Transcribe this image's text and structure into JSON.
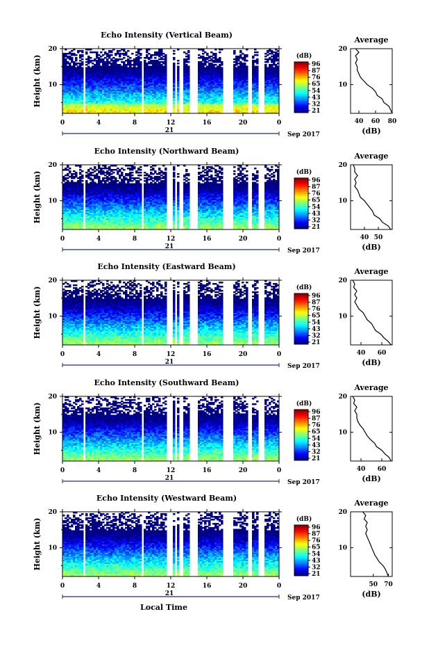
{
  "chart_data": [
    {
      "type": "heatmap",
      "title": "Echo Intensity (Vertical Beam)",
      "ylabel": "Height (km)",
      "ylim": [
        2,
        20
      ],
      "yticks": [
        "10",
        "20"
      ],
      "xlim": [
        0,
        24
      ],
      "xticks": [
        "0",
        "4",
        "8",
        "12",
        "16",
        "20",
        "0"
      ],
      "day_label": "21",
      "date_label": "Sep 2017",
      "colorbar": {
        "unit": "(dB)",
        "ticks": [
          "96",
          "87",
          "76",
          "65",
          "54",
          "43",
          "32",
          "21"
        ]
      },
      "data_gaps_hours": [
        [
          2.3,
          2.6
        ],
        [
          8.7,
          9.0
        ],
        [
          11.6,
          12.3
        ],
        [
          12.5,
          12.7
        ],
        [
          13.0,
          13.4
        ],
        [
          13.6,
          13.7
        ],
        [
          14.0,
          15.1
        ],
        [
          17.7,
          18.9
        ],
        [
          20.6,
          21.0
        ],
        [
          21.6,
          22.3
        ]
      ],
      "average_profile": {
        "title": "Average",
        "xlabel": "(dB)",
        "xlim": [
          30,
          80
        ],
        "xticks": [
          "40",
          "60",
          "80"
        ],
        "height_km": [
          2,
          3,
          4,
          5,
          6,
          7,
          8,
          9,
          10,
          11,
          12,
          13,
          14,
          15,
          16,
          17,
          18,
          19,
          20
        ],
        "value_db": [
          80,
          78,
          76,
          70,
          68,
          62,
          60,
          56,
          50,
          46,
          42,
          40,
          38,
          38,
          36,
          38,
          36,
          40,
          36
        ]
      }
    },
    {
      "type": "heatmap",
      "title": "Echo Intensity (Northward Beam)",
      "ylabel": "Height (km)",
      "ylim": [
        2,
        20
      ],
      "yticks": [
        "10",
        "20"
      ],
      "xlim": [
        0,
        24
      ],
      "xticks": [
        "0",
        "4",
        "8",
        "12",
        "16",
        "20",
        "0"
      ],
      "day_label": "21",
      "date_label": "Sep 2017",
      "colorbar": {
        "unit": "(dB)",
        "ticks": [
          "96",
          "87",
          "76",
          "65",
          "54",
          "43",
          "32",
          "21"
        ]
      },
      "data_gaps_hours": [
        [
          2.3,
          2.6
        ],
        [
          8.7,
          9.0
        ],
        [
          11.6,
          12.3
        ],
        [
          12.5,
          12.7
        ],
        [
          13.0,
          13.4
        ],
        [
          13.6,
          13.7
        ],
        [
          14.0,
          15.1
        ],
        [
          17.7,
          18.9
        ],
        [
          20.6,
          21.0
        ],
        [
          21.6,
          22.3
        ]
      ],
      "average_profile": {
        "title": "Average",
        "xlabel": "(dB)",
        "xlim": [
          30,
          60
        ],
        "xticks": [
          "40",
          "50"
        ],
        "height_km": [
          2,
          3,
          4,
          5,
          6,
          7,
          8,
          9,
          10,
          11,
          12,
          13,
          14,
          15,
          16,
          17,
          18,
          19,
          20
        ],
        "value_db": [
          59,
          57,
          53,
          51,
          47,
          46,
          44,
          42,
          40,
          37,
          36,
          35,
          33,
          34,
          33,
          35,
          33,
          33,
          32
        ]
      }
    },
    {
      "type": "heatmap",
      "title": "Echo Intensity (Eastward Beam)",
      "ylabel": "Height (km)",
      "ylim": [
        2,
        20
      ],
      "yticks": [
        "10",
        "20"
      ],
      "xlim": [
        0,
        24
      ],
      "xticks": [
        "0",
        "4",
        "8",
        "12",
        "16",
        "20",
        "0"
      ],
      "day_label": "21",
      "date_label": "Sep 2017",
      "colorbar": {
        "unit": "(dB)",
        "ticks": [
          "96",
          "87",
          "76",
          "65",
          "54",
          "43",
          "32",
          "21"
        ]
      },
      "data_gaps_hours": [
        [
          2.3,
          2.6
        ],
        [
          8.7,
          9.0
        ],
        [
          11.6,
          12.3
        ],
        [
          12.5,
          12.7
        ],
        [
          13.0,
          13.4
        ],
        [
          13.6,
          13.7
        ],
        [
          14.0,
          15.1
        ],
        [
          17.7,
          18.9
        ],
        [
          20.6,
          21.0
        ],
        [
          21.6,
          22.3
        ]
      ],
      "average_profile": {
        "title": "Average",
        "xlabel": "(dB)",
        "xlim": [
          30,
          70
        ],
        "xticks": [
          "40",
          "60"
        ],
        "height_km": [
          2,
          3,
          4,
          5,
          6,
          7,
          8,
          9,
          10,
          11,
          12,
          13,
          14,
          15,
          16,
          17,
          18,
          19,
          20
        ],
        "value_db": [
          69,
          66,
          62,
          59,
          54,
          52,
          50,
          46,
          44,
          42,
          38,
          36,
          34,
          36,
          34,
          36,
          33,
          34,
          32
        ]
      }
    },
    {
      "type": "heatmap",
      "title": "Echo Intensity (Southward Beam)",
      "ylabel": "Height (km)",
      "ylim": [
        2,
        20
      ],
      "yticks": [
        "10",
        "20"
      ],
      "xlim": [
        0,
        24
      ],
      "xticks": [
        "0",
        "4",
        "8",
        "12",
        "16",
        "20",
        "0"
      ],
      "day_label": "21",
      "date_label": "Sep 2017",
      "colorbar": {
        "unit": "(dB)",
        "ticks": [
          "96",
          "87",
          "76",
          "65",
          "54",
          "43",
          "32",
          "21"
        ]
      },
      "data_gaps_hours": [
        [
          2.3,
          2.6
        ],
        [
          8.7,
          9.0
        ],
        [
          11.6,
          12.3
        ],
        [
          12.5,
          12.7
        ],
        [
          13.0,
          13.4
        ],
        [
          13.6,
          13.7
        ],
        [
          14.0,
          15.1
        ],
        [
          17.7,
          18.9
        ],
        [
          20.6,
          21.0
        ],
        [
          21.6,
          22.3
        ]
      ],
      "average_profile": {
        "title": "Average",
        "xlabel": "(dB)",
        "xlim": [
          30,
          70
        ],
        "xticks": [
          "40",
          "60"
        ],
        "height_km": [
          2,
          3,
          4,
          5,
          6,
          7,
          8,
          9,
          10,
          11,
          12,
          13,
          14,
          15,
          16,
          17,
          18,
          19,
          20
        ],
        "value_db": [
          69,
          67,
          63,
          60,
          55,
          53,
          49,
          46,
          44,
          42,
          39,
          37,
          36,
          36,
          34,
          36,
          33,
          34,
          32
        ]
      }
    },
    {
      "type": "heatmap",
      "title": "Echo Intensity (Westward Beam)",
      "ylabel": "Height (km)",
      "ylim": [
        2,
        20
      ],
      "yticks": [
        "10",
        "20"
      ],
      "xlim": [
        0,
        24
      ],
      "xticks": [
        "0",
        "4",
        "8",
        "12",
        "16",
        "20",
        "0"
      ],
      "day_label": "21",
      "date_label": "Sep 2017",
      "xlabel": "Local Time",
      "colorbar": {
        "unit": "(dB)",
        "ticks": [
          "96",
          "87",
          "76",
          "65",
          "54",
          "43",
          "32",
          "21"
        ]
      },
      "data_gaps_hours": [
        [
          2.3,
          2.6
        ],
        [
          8.7,
          9.0
        ],
        [
          11.6,
          12.3
        ],
        [
          12.5,
          12.7
        ],
        [
          13.0,
          13.4
        ],
        [
          13.6,
          13.7
        ],
        [
          14.0,
          15.1
        ],
        [
          17.7,
          18.9
        ],
        [
          20.6,
          21.0
        ],
        [
          21.6,
          22.3
        ]
      ],
      "average_profile": {
        "title": "Average",
        "xlabel": "(dB)",
        "xlim": [
          20,
          75
        ],
        "xticks": [
          "50",
          "70"
        ],
        "height_km": [
          2,
          3,
          4,
          5,
          6,
          7,
          8,
          9,
          10,
          11,
          12,
          13,
          14,
          15,
          16,
          17,
          18,
          19,
          20
        ],
        "value_db": [
          70,
          68,
          66,
          63,
          58,
          55,
          52,
          50,
          48,
          46,
          44,
          42,
          40,
          42,
          40,
          42,
          38,
          40,
          36
        ]
      }
    }
  ]
}
